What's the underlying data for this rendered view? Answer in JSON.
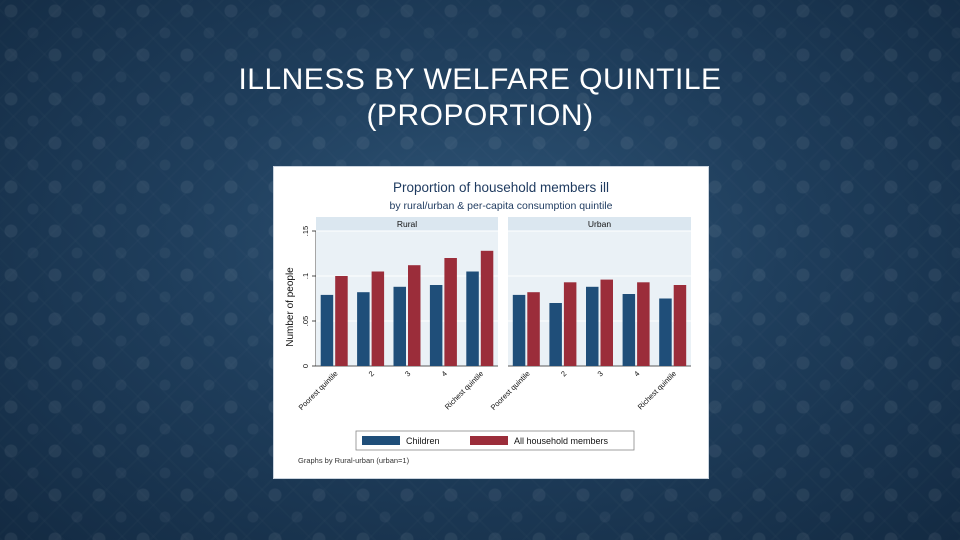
{
  "slide": {
    "title_line1": "ILLNESS BY WELFARE QUINTILE",
    "title_line2": "(PROPORTION)"
  },
  "colors": {
    "children": "#1f4e79",
    "all_members": "#9b2d3a",
    "plot_bg": "#eaf1f6",
    "strip_bg": "#dbe7f0",
    "figure_bg": "#ffffff"
  },
  "chart_data": {
    "type": "bar",
    "title": "Proportion of household members ill",
    "subtitle": "by rural/urban & per-capita consumption quintile",
    "ylabel": "Number of people",
    "ylim": [
      0,
      0.15
    ],
    "yticks": [
      0,
      0.05,
      0.1,
      0.15
    ],
    "ytick_labels": [
      "0",
      ".05",
      ".1",
      ".15"
    ],
    "categories": [
      "Poorest quintile",
      "2",
      "3",
      "4",
      "Richest quintile"
    ],
    "legend": [
      "Children",
      "All household members"
    ],
    "legend_position": "bottom",
    "note": "Graphs by Rural-urban (urban=1)",
    "panels": [
      {
        "name": "Rural",
        "series": [
          {
            "name": "Children",
            "values": [
              0.079,
              0.082,
              0.088,
              0.09,
              0.105
            ]
          },
          {
            "name": "All household members",
            "values": [
              0.1,
              0.105,
              0.112,
              0.12,
              0.128
            ]
          }
        ]
      },
      {
        "name": "Urban",
        "series": [
          {
            "name": "Children",
            "values": [
              0.079,
              0.07,
              0.088,
              0.08,
              0.075
            ]
          },
          {
            "name": "All household members",
            "values": [
              0.082,
              0.093,
              0.096,
              0.093,
              0.09
            ]
          }
        ]
      }
    ]
  }
}
